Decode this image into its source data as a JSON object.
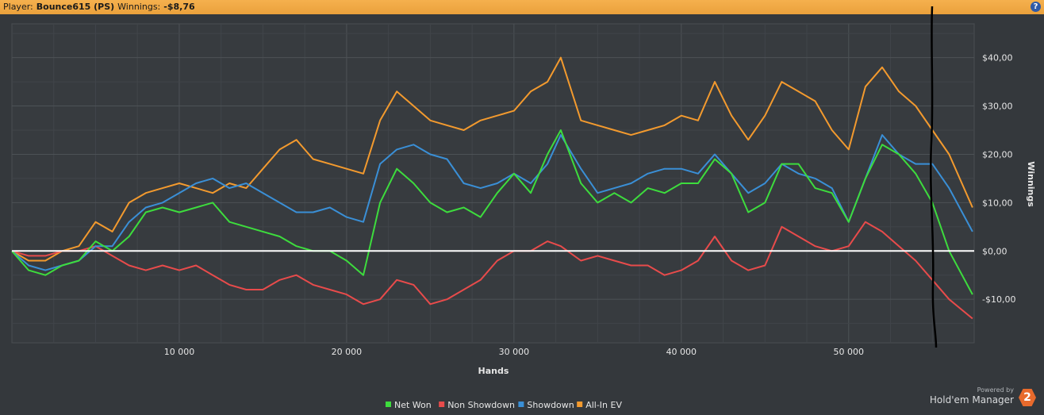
{
  "header": {
    "player_label": "Player:",
    "player_name": "Bounce615 (PS)",
    "winnings_label": "Winnings:",
    "winnings_value": "-$8,76",
    "help_icon": "question-icon",
    "help_glyph": "?"
  },
  "branding": {
    "powered_by": "Powered by",
    "product": "Hold'em Manager",
    "badge": "2"
  },
  "colors": {
    "background": "#34383c",
    "header": "#f0a843",
    "net_won": "#3ddc3d",
    "non_showdown": "#e84b4b",
    "showdown": "#3a8fd6",
    "all_in_ev": "#f39a2e",
    "zero_line": "#ffffff"
  },
  "chart_data": {
    "type": "line",
    "xlabel": "Hands",
    "ylabel": "Winnings",
    "xlim": [
      0,
      57500
    ],
    "ylim": [
      -19,
      47
    ],
    "x_ticks": [
      10000,
      20000,
      30000,
      40000,
      50000
    ],
    "x_tick_labels": [
      "10 000",
      "20 000",
      "30 000",
      "40 000",
      "50 000"
    ],
    "y_ticks": [
      -10,
      0,
      10,
      20,
      30,
      40
    ],
    "y_tick_labels": [
      "-$10,00",
      "$0,00",
      "$10,00",
      "$20,00",
      "$30,00",
      "$40,00"
    ],
    "grid": true,
    "legend_position": "bottom",
    "x": [
      0,
      1000,
      2000,
      3000,
      4000,
      5000,
      6000,
      7000,
      8000,
      9000,
      10000,
      11000,
      12000,
      13000,
      14000,
      15000,
      16000,
      17000,
      18000,
      19000,
      20000,
      21000,
      22000,
      23000,
      24000,
      25000,
      26000,
      27000,
      28000,
      29000,
      30000,
      31000,
      32000,
      32800,
      34000,
      35000,
      36000,
      37000,
      38000,
      39000,
      40000,
      41000,
      42000,
      43000,
      44000,
      45000,
      46000,
      47000,
      48000,
      49000,
      50000,
      51000,
      52000,
      53000,
      54000,
      55000,
      56000,
      57400
    ],
    "series": [
      {
        "name": "Net Won",
        "color": "#3ddc3d",
        "values": [
          0,
          -4,
          -5,
          -3,
          -2,
          2,
          0,
          3,
          8,
          9,
          8,
          9,
          10,
          6,
          5,
          4,
          3,
          1,
          0,
          0,
          -2,
          -5,
          10,
          17,
          14,
          10,
          8,
          9,
          7,
          12,
          16,
          12,
          20,
          25,
          14,
          10,
          12,
          10,
          13,
          12,
          14,
          14,
          19,
          16,
          8,
          10,
          18,
          18,
          13,
          12,
          6,
          15,
          22,
          20,
          16,
          10,
          0,
          -9
        ]
      },
      {
        "name": "Non Showdown",
        "color": "#e84b4b",
        "values": [
          0,
          -1,
          -1,
          0,
          0,
          1,
          -1,
          -3,
          -4,
          -3,
          -4,
          -3,
          -5,
          -7,
          -8,
          -8,
          -6,
          -5,
          -7,
          -8,
          -9,
          -11,
          -10,
          -6,
          -7,
          -11,
          -10,
          -8,
          -6,
          -2,
          0,
          0,
          2,
          1,
          -2,
          -1,
          -2,
          -3,
          -3,
          -5,
          -4,
          -2,
          3,
          -2,
          -4,
          -3,
          5,
          3,
          1,
          0,
          1,
          6,
          4,
          1,
          -2,
          -6,
          -10,
          -14
        ]
      },
      {
        "name": "Showdown",
        "color": "#3a8fd6",
        "values": [
          0,
          -3,
          -4,
          -3,
          -2,
          1,
          1,
          6,
          9,
          10,
          12,
          14,
          15,
          13,
          14,
          12,
          10,
          8,
          8,
          9,
          7,
          6,
          18,
          21,
          22,
          20,
          19,
          14,
          13,
          14,
          16,
          14,
          18,
          24,
          17,
          12,
          13,
          14,
          16,
          17,
          17,
          16,
          20,
          16,
          12,
          14,
          18,
          16,
          15,
          13,
          6,
          15,
          24,
          20,
          18,
          18,
          13,
          4
        ]
      },
      {
        "name": "All-In EV",
        "color": "#f39a2e",
        "values": [
          0,
          -2,
          -2,
          0,
          1,
          6,
          4,
          10,
          12,
          13,
          14,
          13,
          12,
          14,
          13,
          17,
          21,
          23,
          19,
          18,
          17,
          16,
          27,
          33,
          30,
          27,
          26,
          25,
          27,
          28,
          29,
          33,
          35,
          40,
          27,
          26,
          25,
          24,
          25,
          26,
          28,
          27,
          35,
          28,
          23,
          28,
          35,
          33,
          31,
          25,
          21,
          34,
          38,
          33,
          30,
          25,
          20,
          9
        ]
      }
    ],
    "annotation": "black hand-drawn vertical marker near 55 000 hands"
  }
}
